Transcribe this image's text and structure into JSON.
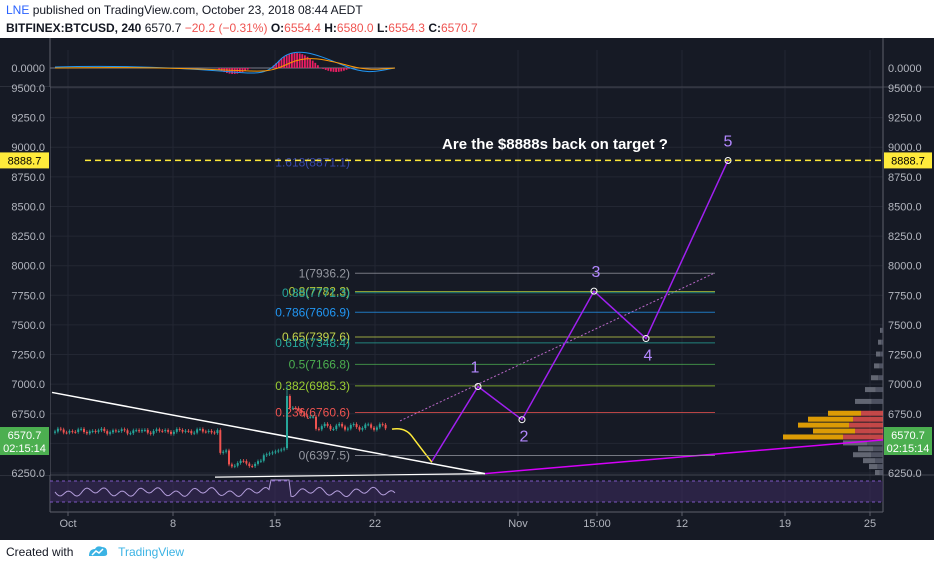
{
  "header": {
    "user": "LNE",
    "published": "published on TradingView.com, October 23, 2018 08:44 AEDT",
    "symbol": "BITFINEX:BTCUSD, 240",
    "last": "6570.7",
    "change": "−20.2 (−0.31%)",
    "o_label": "O:",
    "o": "6554.4",
    "h_label": "H:",
    "h": "6580.0",
    "l_label": "L:",
    "l": "6554.3",
    "c_label": "C:",
    "c": "6570.7"
  },
  "footer": {
    "created": "Created with",
    "brand": "TradingView"
  },
  "colors": {
    "background": "#161a25",
    "up": "#26a69a",
    "down": "#ef5350",
    "wave": "#a020f0",
    "target_line": "#ffeb3b",
    "price_badge": "#4caf50"
  },
  "chart_data": {
    "type": "line",
    "title": "Are the $8888s back on target ?",
    "ylim": [
      6125,
      9560
    ],
    "xlabels": [
      "Oct",
      "8",
      "15",
      "22",
      "Nov",
      "15:00",
      "12",
      "19",
      "25"
    ],
    "yticks": [
      6250,
      6500,
      6750,
      7000,
      7250,
      7500,
      7750,
      8000,
      8250,
      8500,
      8750,
      9000,
      9250,
      9500
    ],
    "ytick_labels": [
      "6250.0",
      "6500.0",
      "6750.0",
      "7000.0",
      "7250.0",
      "7500.0",
      "7750.0",
      "8000.0",
      "8250.0",
      "8500.0",
      "8750.0",
      "9000.0",
      "9250.0",
      "9500.0"
    ],
    "target_price": 8888.7,
    "target_label": "8888.7",
    "last_price": 6570.7,
    "last_label": "6570.7",
    "countdown": "02:15:14",
    "macd_label": "0.0000",
    "fib_labels": [
      {
        "label": "1(7936.2)",
        "value": 7936.2,
        "color": "#9598a1"
      },
      {
        "label": "0.8(7782.3)",
        "value": 7782.3,
        "color": "#b5c93a"
      },
      {
        "label": "0.88(7771.3)",
        "value": 7771.3,
        "color": "#26a69a"
      },
      {
        "label": "0.786(7606.9)",
        "value": 7606.9,
        "color": "#2196f3"
      },
      {
        "label": "0.65(7397.6)",
        "value": 7397.6,
        "color": "#c6d64b"
      },
      {
        "label": "0.618(7348.4)",
        "value": 7348.4,
        "color": "#26a69a"
      },
      {
        "label": "0.5(7166.8)",
        "value": 7166.8,
        "color": "#4caf50"
      },
      {
        "label": "0.382(6985.3)",
        "value": 6985.3,
        "color": "#9acd32"
      },
      {
        "label": "0.236(6760.6)",
        "value": 6760.6,
        "color": "#ef5350"
      },
      {
        "label": "0(6397.5)",
        "value": 6397.5,
        "color": "#9598a1"
      }
    ],
    "ext_label": {
      "label": "1.618(8871.1)",
      "value": 8871.1
    },
    "waves": [
      {
        "label": "1",
        "value": 6980
      },
      {
        "label": "2",
        "value": 6700
      },
      {
        "label": "3",
        "value": 7785
      },
      {
        "label": "4",
        "value": 7385
      },
      {
        "label": "5",
        "value": 8888
      }
    ]
  }
}
